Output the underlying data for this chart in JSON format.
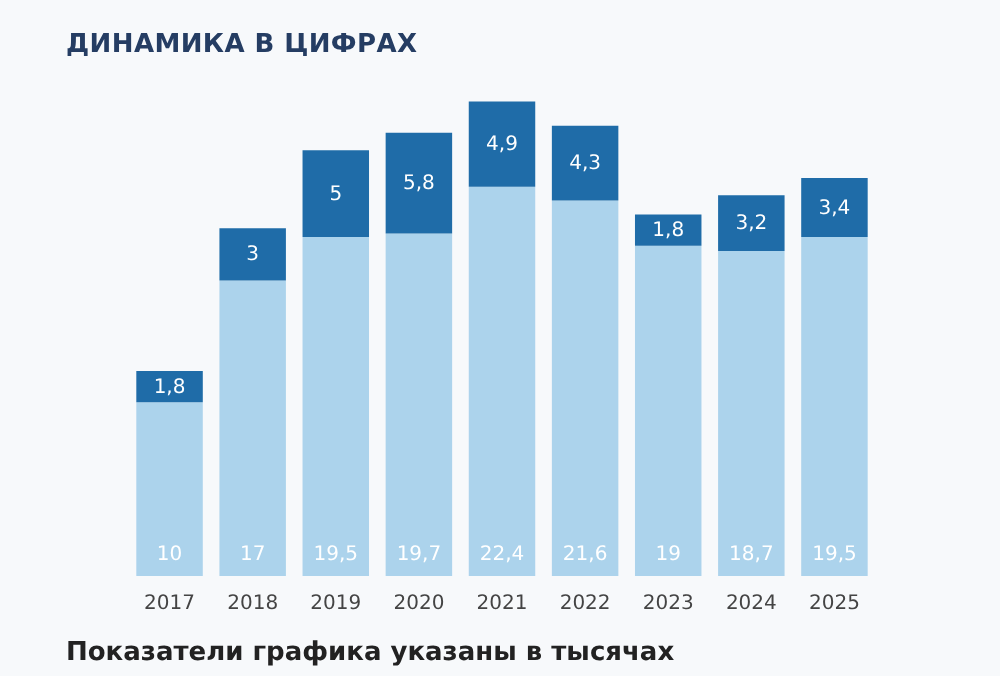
{
  "chart_data": {
    "type": "bar",
    "title": "ДИНАМИКА В ЦИФРАХ",
    "categories": [
      "2017",
      "2018",
      "2019",
      "2020",
      "2021",
      "2022",
      "2023",
      "2024",
      "2025"
    ],
    "stacked": true,
    "legend": false,
    "grid": false,
    "series": [
      {
        "color": "#acd3ec",
        "values": [
          10,
          17,
          19.5,
          19.7,
          22.4,
          21.6,
          19,
          18.7,
          19.5
        ],
        "value_labels": [
          "10",
          "17",
          "19,5",
          "19,7",
          "22,4",
          "21,6",
          "19",
          "18,7",
          "19,5"
        ]
      },
      {
        "color": "#1f6ca8",
        "values": [
          1.8,
          3,
          5,
          5.8,
          4.9,
          4.3,
          1.8,
          3.2,
          3.4
        ],
        "value_labels": [
          "1,8",
          "3",
          "5",
          "5,8",
          "4,9",
          "4,3",
          "1,8",
          "3,2",
          "3,4"
        ]
      }
    ],
    "annotations": [
      "Показатели графика указаны в тысячах"
    ]
  }
}
